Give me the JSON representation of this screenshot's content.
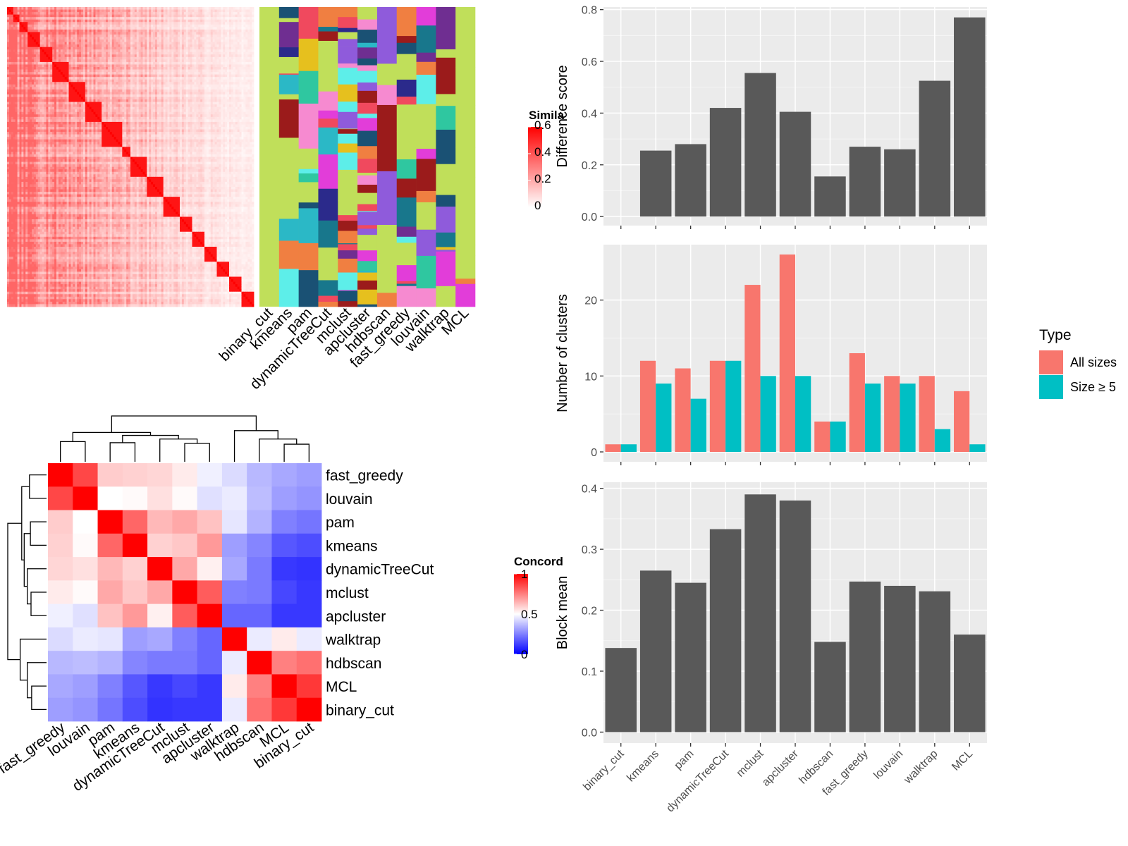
{
  "chart_data": [
    {
      "type": "heatmap",
      "panel": "similarity-matrix",
      "legend": {
        "title": "Simila",
        "ticks": [
          "0",
          "0.2",
          "0.4",
          "0.6"
        ],
        "range": [
          0,
          0.6
        ],
        "low_color": "#FFFFFF",
        "high_color": "#FF0000"
      },
      "n_terms": 120,
      "background_similarity": 0.12
    },
    {
      "type": "heatmap",
      "panel": "cluster-membership",
      "methods": [
        "binary_cut",
        "kmeans",
        "pam",
        "dynamicTreeCut",
        "mclust",
        "apcluster",
        "hdbscan",
        "fast_greedy",
        "louvain",
        "walktrap",
        "MCL"
      ],
      "palette": [
        "#C0DF5A",
        "#E6C01E",
        "#1A5174",
        "#E23DD9",
        "#F0495E",
        "#2FC7A0",
        "#18778C",
        "#9B1B1B",
        "#2B2A8B",
        "#5DEEE9",
        "#F07F41",
        "#8F5BDB",
        "#2BB8C6",
        "#6F2E91",
        "#F68AD0"
      ],
      "background_color": "#C0DF5A"
    },
    {
      "type": "heatmap",
      "panel": "concordance",
      "labels": [
        "fast_greedy",
        "louvain",
        "pam",
        "kmeans",
        "dynamicTreeCut",
        "mclust",
        "apcluster",
        "walktrap",
        "hdbscan",
        "MCL",
        "binary_cut"
      ],
      "values": [
        [
          1.0,
          0.86,
          0.6,
          0.59,
          0.58,
          0.54,
          0.47,
          0.43,
          0.36,
          0.33,
          0.31
        ],
        [
          0.86,
          1.0,
          0.5,
          0.51,
          0.56,
          0.51,
          0.44,
          0.46,
          0.37,
          0.31,
          0.29
        ],
        [
          0.6,
          0.5,
          1.0,
          0.8,
          0.64,
          0.67,
          0.62,
          0.45,
          0.35,
          0.25,
          0.23
        ],
        [
          0.59,
          0.51,
          0.8,
          1.0,
          0.59,
          0.61,
          0.7,
          0.31,
          0.26,
          0.17,
          0.15
        ],
        [
          0.58,
          0.56,
          0.64,
          0.59,
          1.0,
          0.67,
          0.53,
          0.33,
          0.24,
          0.11,
          0.1
        ],
        [
          0.54,
          0.51,
          0.67,
          0.61,
          0.67,
          1.0,
          0.82,
          0.25,
          0.24,
          0.14,
          0.11
        ],
        [
          0.47,
          0.44,
          0.62,
          0.7,
          0.53,
          0.82,
          1.0,
          0.2,
          0.2,
          0.11,
          0.11
        ],
        [
          0.43,
          0.46,
          0.45,
          0.31,
          0.33,
          0.25,
          0.2,
          1.0,
          0.46,
          0.54,
          0.46
        ],
        [
          0.36,
          0.37,
          0.35,
          0.26,
          0.24,
          0.24,
          0.2,
          0.46,
          1.0,
          0.75,
          0.78
        ],
        [
          0.33,
          0.31,
          0.25,
          0.17,
          0.11,
          0.14,
          0.11,
          0.54,
          0.75,
          1.0,
          0.89
        ],
        [
          0.31,
          0.29,
          0.23,
          0.15,
          0.1,
          0.11,
          0.11,
          0.46,
          0.78,
          0.89,
          1.0
        ]
      ],
      "legend": {
        "title": "Concord",
        "ticks": [
          "0",
          "0.5",
          "1"
        ],
        "range": [
          0,
          1
        ],
        "low_color": "#0000FF",
        "mid_color": "#FFFFFF",
        "high_color": "#FF0000"
      }
    },
    {
      "type": "bar",
      "panel": "difference-score",
      "categories": [
        "binary_cut",
        "kmeans",
        "pam",
        "dynamicTreeCut",
        "mclust",
        "apcluster",
        "hdbscan",
        "fast_greedy",
        "louvain",
        "walktrap",
        "MCL"
      ],
      "values": [
        0.0,
        0.255,
        0.28,
        0.42,
        0.555,
        0.405,
        0.155,
        0.27,
        0.26,
        0.525,
        0.77
      ],
      "ylabel": "Difference score",
      "ylim": [
        -0.035,
        0.81
      ],
      "yticks": [
        0.0,
        0.2,
        0.4,
        0.6,
        0.8
      ],
      "ytick_labels": [
        "0.0",
        "0.2",
        "0.4",
        "0.6",
        "0.8"
      ],
      "bar_color": "#595959",
      "grid": true
    },
    {
      "type": "bar",
      "panel": "number-of-clusters",
      "categories": [
        "binary_cut",
        "kmeans",
        "pam",
        "dynamicTreeCut",
        "mclust",
        "apcluster",
        "hdbscan",
        "fast_greedy",
        "louvain",
        "walktrap",
        "MCL"
      ],
      "series": [
        {
          "name": "All sizes",
          "color": "#F8766D",
          "values": [
            1,
            12,
            11,
            12,
            22,
            26,
            4,
            13,
            10,
            10,
            8
          ]
        },
        {
          "name": "Size ≥ 5",
          "color": "#00BFC4",
          "values": [
            1,
            9,
            7,
            12,
            10,
            10,
            4,
            9,
            9,
            3,
            1
          ]
        }
      ],
      "ylabel": "Number of clusters",
      "ylim": [
        -1.3,
        27.3
      ],
      "yticks": [
        0,
        10,
        20
      ],
      "ytick_labels": [
        "0",
        "10",
        "20"
      ],
      "legend": {
        "title": "Type",
        "position": "right"
      },
      "grid": true
    },
    {
      "type": "bar",
      "panel": "block-mean",
      "categories": [
        "binary_cut",
        "kmeans",
        "pam",
        "dynamicTreeCut",
        "mclust",
        "apcluster",
        "hdbscan",
        "fast_greedy",
        "louvain",
        "walktrap",
        "MCL"
      ],
      "values": [
        0.138,
        0.265,
        0.245,
        0.333,
        0.39,
        0.38,
        0.148,
        0.247,
        0.24,
        0.231,
        0.16
      ],
      "ylabel": "Block mean",
      "ylim": [
        -0.018,
        0.41
      ],
      "yticks": [
        0.0,
        0.1,
        0.2,
        0.3,
        0.4
      ],
      "ytick_labels": [
        "0.0",
        "0.1",
        "0.2",
        "0.3",
        "0.4"
      ],
      "bar_color": "#595959",
      "grid": true
    }
  ]
}
